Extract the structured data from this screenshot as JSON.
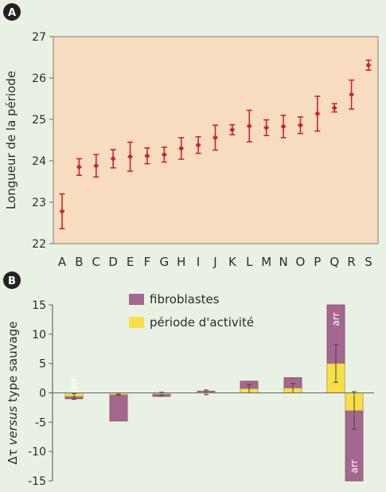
{
  "panel_labels": {
    "a": "A",
    "b": "B"
  },
  "colors": {
    "background": "#e8f1e3",
    "panel_a_fill": "#f7dcc0",
    "marker": "#c62828",
    "fibroblastes": "#a5668f",
    "activite": "#f6df49",
    "text": "#2b2b2b",
    "axis": "#666666"
  },
  "chart_data": [
    {
      "type": "scatter",
      "panel": "A",
      "ylabel": "Longueur de la période",
      "xlabel": "",
      "ylim": [
        22,
        27
      ],
      "yticks": [
        22,
        23,
        24,
        25,
        26,
        27
      ],
      "grid": false,
      "error_bars": true,
      "categories": [
        "A",
        "B",
        "C",
        "D",
        "E",
        "F",
        "G",
        "H",
        "I",
        "J",
        "K",
        "L",
        "M",
        "N",
        "O",
        "P",
        "Q",
        "R",
        "S"
      ],
      "tick_labels": [
        "A",
        "B",
        "C",
        "D",
        "E",
        "F",
        "G",
        "H",
        "I",
        "J",
        "K",
        "L",
        "M",
        "N",
        "O",
        "P",
        "Q",
        "R",
        "S"
      ],
      "values": [
        22.78,
        23.85,
        23.88,
        24.05,
        24.1,
        24.12,
        24.15,
        24.3,
        24.38,
        24.56,
        24.75,
        24.84,
        24.8,
        24.83,
        24.86,
        25.14,
        25.28,
        25.6,
        26.31
      ],
      "errors": [
        0.42,
        0.2,
        0.27,
        0.22,
        0.35,
        0.19,
        0.18,
        0.26,
        0.2,
        0.3,
        0.12,
        0.38,
        0.19,
        0.27,
        0.2,
        0.42,
        0.1,
        0.35,
        0.12
      ]
    },
    {
      "type": "bar",
      "stacked": true,
      "panel": "B",
      "ylabel_symbol": "Δτ",
      "ylabel_italic": "versus",
      "ylabel_rest": "type sauvage",
      "ylim": [
        -15,
        15
      ],
      "yticks": [
        15,
        10,
        5,
        0,
        -5,
        -10,
        -15
      ],
      "ytick_labels": [
        "15",
        "10",
        "5",
        "0",
        "-5",
        "-10",
        "-15"
      ],
      "legend_position": "top-center",
      "groups": [
        {
          "fibroblastes": -1.0,
          "activite": -0.6,
          "error": 0.5,
          "clipped_text": "arr"
        },
        {
          "fibroblastes": -4.8,
          "activite": -0.3,
          "error": 0.1
        },
        {
          "fibroblastes": -0.6,
          "activite": -0.2,
          "error": 0.3
        },
        {
          "fibroblastes": 0.3,
          "activite": 0.1,
          "error": 0.4
        },
        {
          "fibroblastes": 2.0,
          "activite": 0.7,
          "error": 0.7
        },
        {
          "fibroblastes": 2.6,
          "activite": 0.8,
          "error": 0.8
        },
        {
          "fibroblastes": 16.0,
          "activite": 5.0,
          "error": 3.2,
          "clipped_text": "arr"
        },
        {
          "fibroblastes": -16.0,
          "activite": -3.0,
          "error": 3.2,
          "clipped_text": "arr"
        }
      ],
      "series": [
        {
          "name": "fibroblastes",
          "key": "fibroblastes"
        },
        {
          "name": "période d'activité",
          "key": "activite"
        }
      ]
    }
  ]
}
